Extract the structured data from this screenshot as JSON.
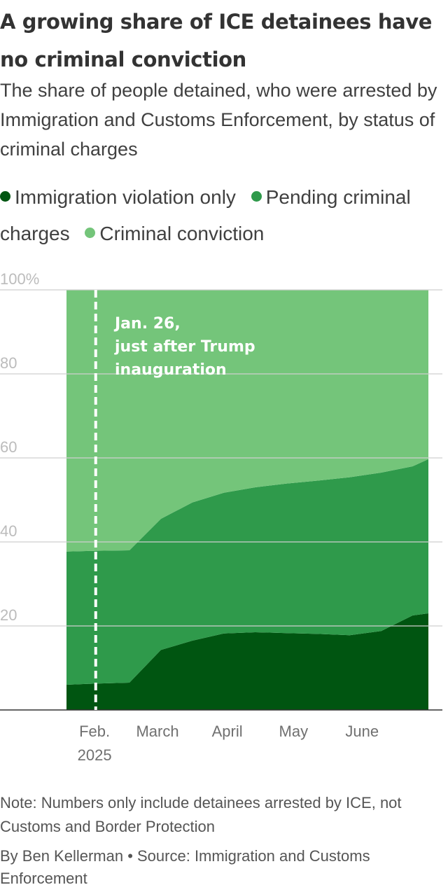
{
  "header": {
    "title": "A growing share of ICE detainees have no criminal conviction",
    "subtitle": "The share of people detained, who were arrested by Immigration and Customs Enforcement, by status of criminal charges"
  },
  "legend": [
    {
      "label": "Immigration violation only",
      "color": "#005511"
    },
    {
      "label": "Pending criminal charges",
      "color": "#2f9a4b"
    },
    {
      "label": "Criminal conviction",
      "color": "#74c57a"
    }
  ],
  "chart_data": {
    "type": "area",
    "stacked": true,
    "title": "A growing share of ICE detainees have no criminal conviction",
    "xlabel": "",
    "ylabel": "",
    "ylim": [
      0,
      100
    ],
    "y_ticks": [
      {
        "value": 20,
        "label": "20"
      },
      {
        "value": 40,
        "label": "40"
      },
      {
        "value": 60,
        "label": "60"
      },
      {
        "value": 80,
        "label": "80"
      },
      {
        "value": 100,
        "label": "100%"
      }
    ],
    "x_day_range": [
      0,
      161
    ],
    "x_ticks": [
      {
        "day": 12.5,
        "label": "Feb.",
        "label2": "2025"
      },
      {
        "day": 40.5,
        "label": "March",
        "label2": ""
      },
      {
        "day": 71.5,
        "label": "April",
        "label2": ""
      },
      {
        "day": 101,
        "label": "May",
        "label2": ""
      },
      {
        "day": 131.5,
        "label": "June",
        "label2": ""
      }
    ],
    "x_days": [
      0,
      14,
      28,
      42,
      56,
      70,
      84,
      98,
      112,
      126,
      140,
      154,
      161
    ],
    "series": [
      {
        "name": "Immigration violation only",
        "color": "#005511",
        "values": [
          6,
          6.3,
          6.5,
          14.3,
          16.5,
          18.2,
          18.5,
          18.3,
          18.1,
          17.8,
          18.8,
          22.5,
          23
        ]
      },
      {
        "name": "Pending criminal charges",
        "color": "#2f9a4b",
        "values": [
          31.7,
          31.6,
          31.5,
          31.2,
          32.9,
          33.5,
          34.5,
          35.6,
          36.5,
          37.6,
          37.7,
          35.5,
          36.7
        ]
      },
      {
        "name": "Criminal conviction",
        "color": "#74c57a",
        "values": [
          62.3,
          62.1,
          62,
          54.5,
          50.6,
          48.3,
          47,
          46.1,
          45.4,
          44.6,
          43.5,
          42,
          40.3
        ]
      }
    ],
    "annotation": {
      "day": 13,
      "lines": [
        "Jan. 26,",
        "just after Trump",
        "inauguration"
      ]
    }
  },
  "footer": {
    "note": "Note: Numbers only include detainees arrested by ICE, not Customs and Border Protection",
    "credit": "By Ben Kellerman • Source: Immigration and Customs Enforcement"
  }
}
